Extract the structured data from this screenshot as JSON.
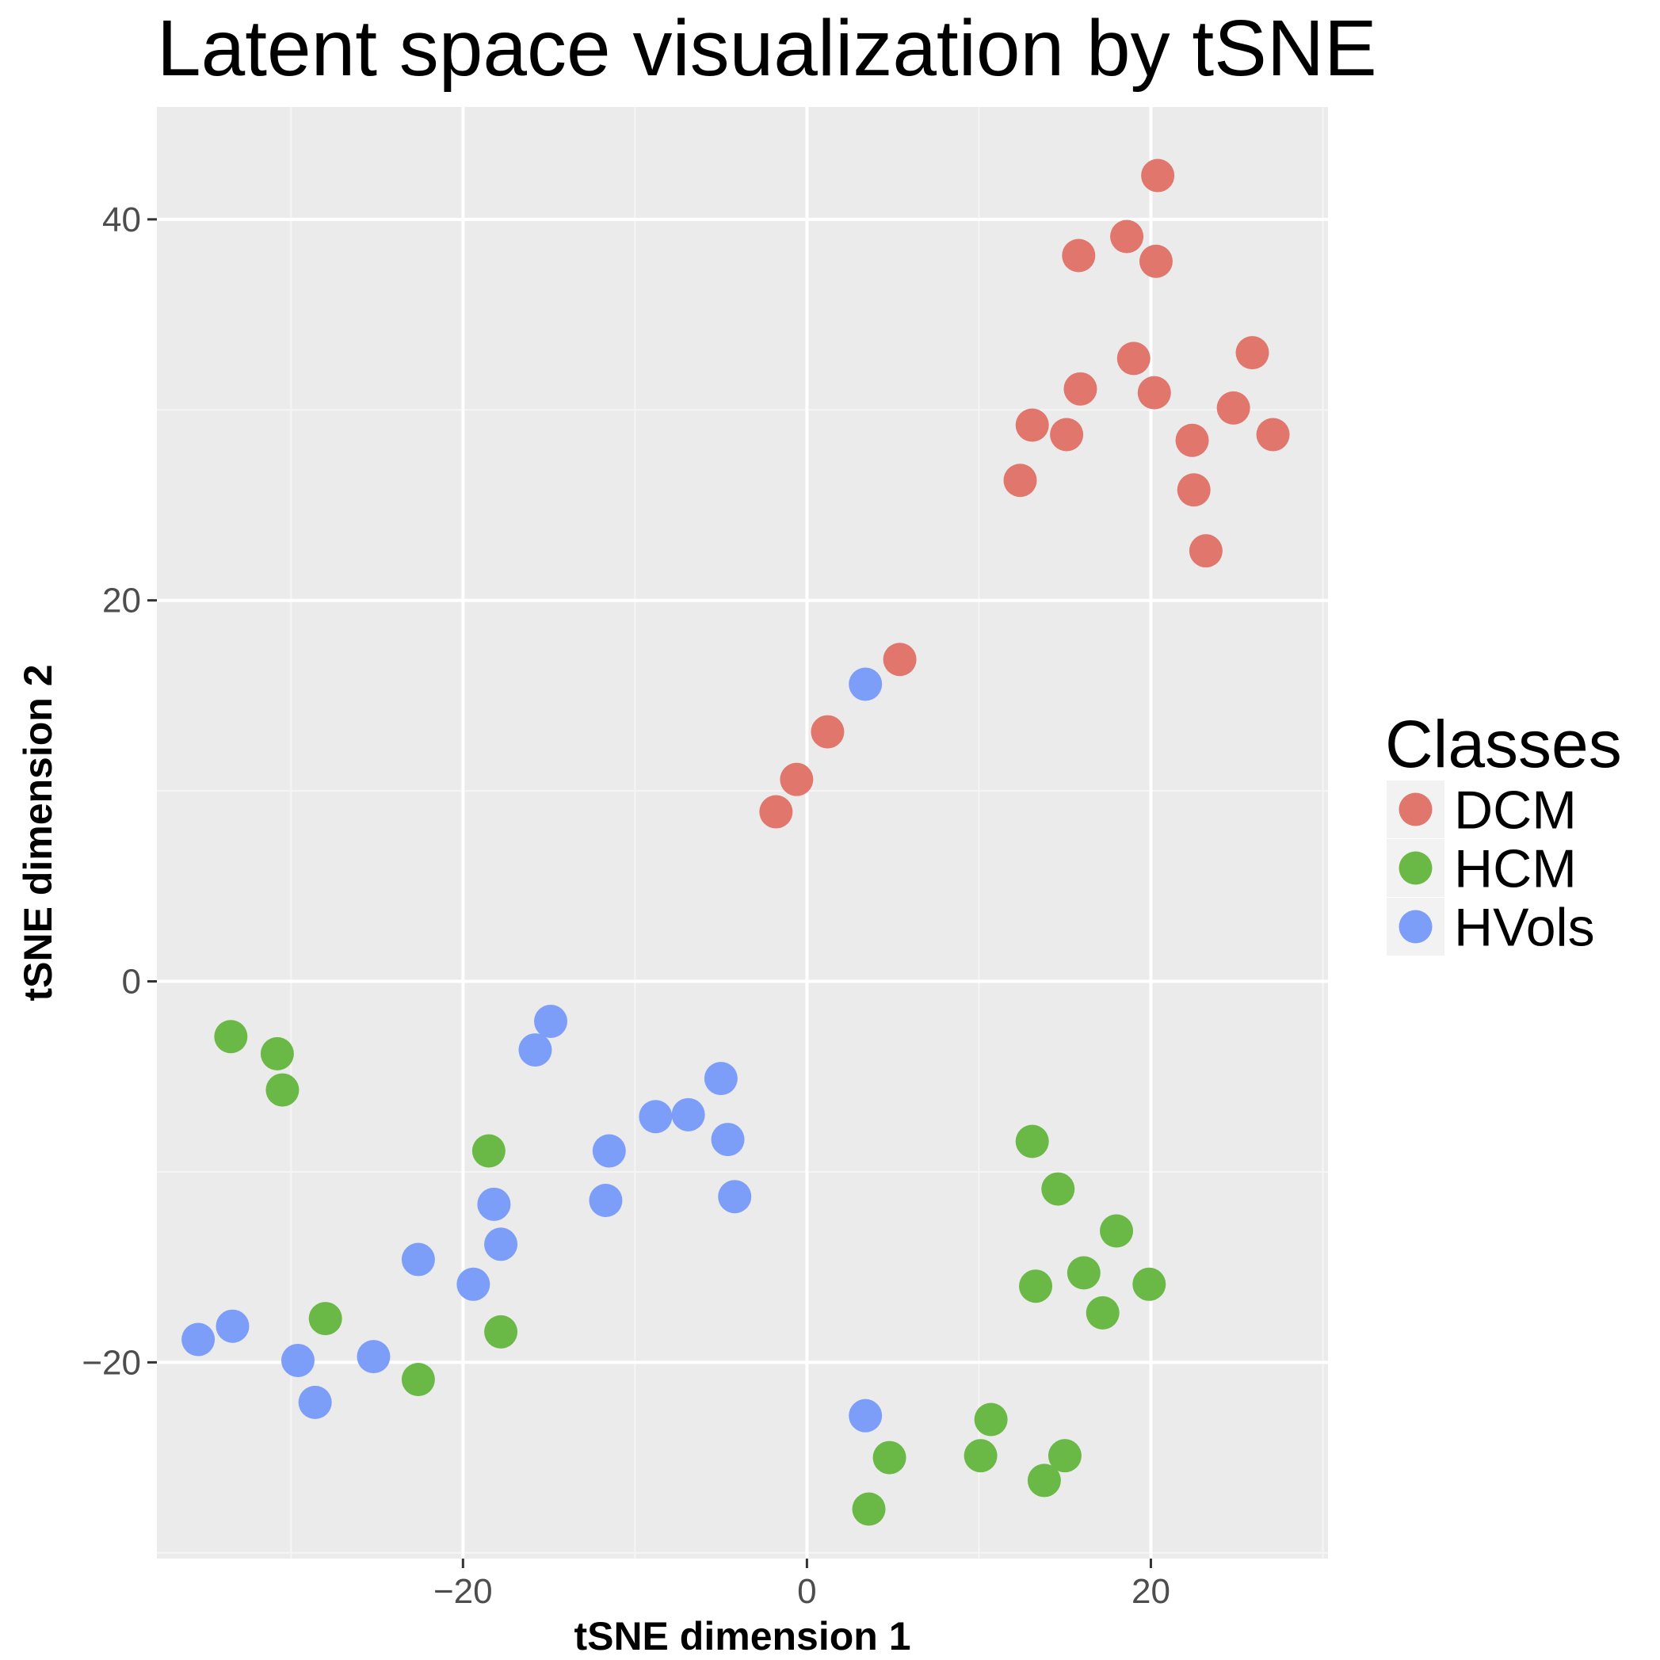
{
  "chart_data": {
    "type": "scatter",
    "title": "Latent space visualization by tSNE",
    "xlabel": "tSNE dimension 1",
    "ylabel": "tSNE dimension 2",
    "xlim": [
      -37.8,
      30.3
    ],
    "ylim": [
      -30.3,
      45.9
    ],
    "x_ticks": [
      -20,
      0,
      20
    ],
    "x_tick_labels": [
      "−20",
      "0",
      "20"
    ],
    "y_ticks": [
      -20,
      0,
      20,
      40
    ],
    "y_tick_labels": [
      "−20",
      "0",
      "20",
      "40"
    ],
    "grid": true,
    "legend": {
      "title": "Classes",
      "position": "right"
    },
    "series": [
      {
        "name": "DCM",
        "color": "#e0766c",
        "points": [
          [
            20.4,
            42.3
          ],
          [
            18.6,
            39.1
          ],
          [
            15.8,
            38.1
          ],
          [
            20.3,
            37.8
          ],
          [
            25.9,
            33.0
          ],
          [
            19.0,
            32.7
          ],
          [
            15.9,
            31.1
          ],
          [
            20.2,
            30.9
          ],
          [
            24.8,
            30.1
          ],
          [
            13.1,
            29.2
          ],
          [
            15.1,
            28.7
          ],
          [
            22.4,
            28.4
          ],
          [
            27.1,
            28.7
          ],
          [
            12.4,
            26.3
          ],
          [
            22.5,
            25.8
          ],
          [
            23.2,
            22.6
          ],
          [
            5.4,
            16.9
          ],
          [
            1.2,
            13.1
          ],
          [
            -0.6,
            10.6
          ],
          [
            -1.8,
            8.9
          ]
        ]
      },
      {
        "name": "HCM",
        "color": "#6ab946",
        "points": [
          [
            -33.5,
            -2.9
          ],
          [
            -30.8,
            -3.8
          ],
          [
            -30.5,
            -5.7
          ],
          [
            -18.5,
            -8.9
          ],
          [
            -28.0,
            -17.7
          ],
          [
            -22.6,
            -20.9
          ],
          [
            -17.8,
            -18.4
          ],
          [
            13.1,
            -8.4
          ],
          [
            14.6,
            -10.9
          ],
          [
            18.0,
            -13.1
          ],
          [
            16.1,
            -15.3
          ],
          [
            13.3,
            -16.0
          ],
          [
            17.2,
            -17.4
          ],
          [
            19.9,
            -15.9
          ],
          [
            10.7,
            -23.0
          ],
          [
            15.0,
            -24.9
          ],
          [
            10.1,
            -24.9
          ],
          [
            4.8,
            -25.0
          ],
          [
            13.8,
            -26.2
          ],
          [
            3.6,
            -27.7
          ]
        ]
      },
      {
        "name": "HVols",
        "color": "#7d9ef8",
        "points": [
          [
            3.4,
            15.6
          ],
          [
            -14.9,
            -2.1
          ],
          [
            -15.8,
            -3.6
          ],
          [
            -5.0,
            -5.1
          ],
          [
            -8.8,
            -7.1
          ],
          [
            -6.9,
            -7.0
          ],
          [
            -4.6,
            -8.3
          ],
          [
            -11.5,
            -8.9
          ],
          [
            -4.2,
            -11.3
          ],
          [
            -11.7,
            -11.5
          ],
          [
            -18.2,
            -11.7
          ],
          [
            -17.8,
            -13.8
          ],
          [
            -22.6,
            -14.6
          ],
          [
            -19.4,
            -15.9
          ],
          [
            -35.4,
            -18.8
          ],
          [
            -33.4,
            -18.1
          ],
          [
            -29.6,
            -19.9
          ],
          [
            -25.2,
            -19.7
          ],
          [
            -28.6,
            -22.1
          ],
          [
            3.4,
            -22.8
          ]
        ]
      }
    ]
  }
}
